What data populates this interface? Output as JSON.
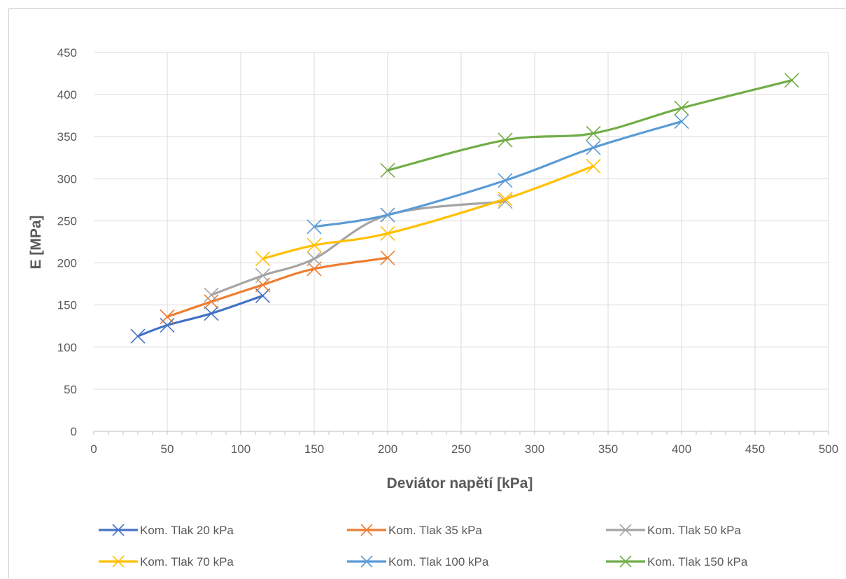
{
  "chart_data": {
    "type": "line",
    "title": "",
    "xlabel": "Deviátor napětí [kPa]",
    "ylabel": "E [MPa]",
    "xlim": [
      0,
      500
    ],
    "ylim": [
      0,
      450
    ],
    "x_ticks": [
      0,
      50,
      100,
      150,
      200,
      250,
      300,
      350,
      400,
      450,
      500
    ],
    "y_ticks": [
      0,
      50,
      100,
      150,
      200,
      250,
      300,
      350,
      400,
      450
    ],
    "grid": "major gridlines on both axes",
    "legend_position": "bottom",
    "marker": "x",
    "smoothed": true,
    "series": [
      {
        "name": "Kom. Tlak 20 kPa",
        "color": "#4472C4",
        "x": [
          30,
          50,
          80,
          115
        ],
        "y": [
          113,
          126,
          140,
          161
        ]
      },
      {
        "name": "Kom. Tlak 35 kPa",
        "color": "#ED7D31",
        "x": [
          50,
          80,
          115,
          150,
          200
        ],
        "y": [
          136,
          154,
          174,
          193,
          206
        ]
      },
      {
        "name": "Kom. Tlak 50 kPa",
        "color": "#A5A5A5",
        "x": [
          80,
          115,
          150,
          200,
          280
        ],
        "y": [
          162,
          185,
          205,
          257,
          273
        ]
      },
      {
        "name": "Kom. Tlak 70 kPa",
        "color": "#FFC000",
        "x": [
          115,
          150,
          200,
          280,
          340
        ],
        "y": [
          205,
          221,
          235,
          276,
          315
        ]
      },
      {
        "name": "Kom. Tlak 100 kPa",
        "color": "#5B9BD5",
        "x": [
          150,
          200,
          280,
          340,
          400
        ],
        "y": [
          243,
          257,
          298,
          337,
          368
        ]
      },
      {
        "name": "Kom. Tlak 150 kPa",
        "color": "#70AD47",
        "x": [
          200,
          280,
          340,
          400,
          475
        ],
        "y": [
          310,
          346,
          354,
          384,
          417
        ]
      }
    ]
  }
}
